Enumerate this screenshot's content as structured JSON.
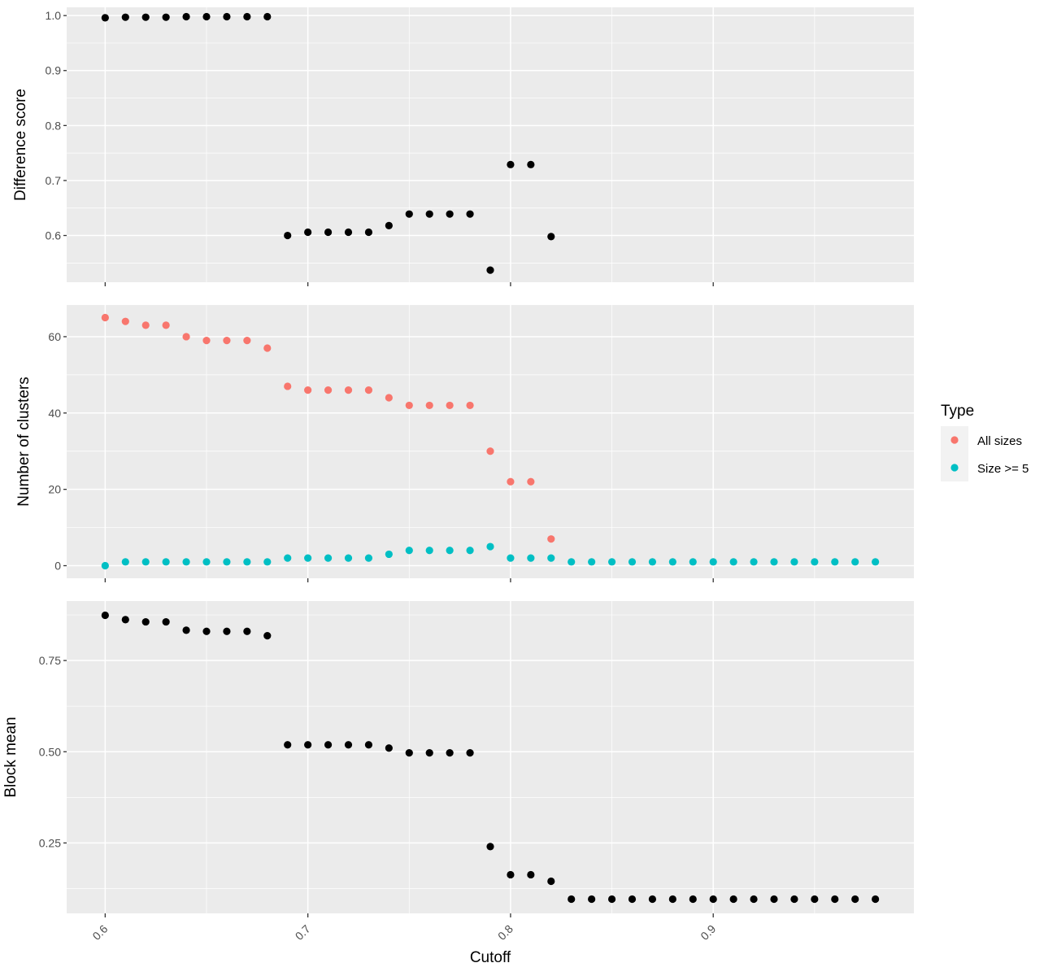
{
  "chart_data": {
    "type": "scatter",
    "xlabel": "Cutoff",
    "x_ticks": [
      0.6,
      0.7,
      0.8,
      0.9
    ],
    "x_tick_labels": [
      "0.6",
      "0.7",
      "0.8",
      "0.9"
    ],
    "xlim": [
      0.581,
      0.999
    ],
    "panels": [
      {
        "id": "difference",
        "ylabel": "Difference score",
        "ylim": [
          0.515,
          1.015
        ],
        "y_ticks": [
          0.6,
          0.7,
          0.8,
          0.9,
          1.0
        ],
        "y_tick_labels": [
          "0.6",
          "0.7",
          "0.8",
          "0.9",
          "1.0"
        ],
        "series": [
          {
            "color": "#000000",
            "x": [
              0.6,
              0.61,
              0.62,
              0.63,
              0.64,
              0.65,
              0.66,
              0.67,
              0.68,
              0.69,
              0.7,
              0.71,
              0.72,
              0.73,
              0.74,
              0.75,
              0.76,
              0.77,
              0.78,
              0.79,
              0.8,
              0.81,
              0.82
            ],
            "y": [
              0.996,
              0.997,
              0.997,
              0.997,
              0.998,
              0.998,
              0.998,
              0.998,
              0.998,
              0.6,
              0.606,
              0.606,
              0.606,
              0.606,
              0.618,
              0.639,
              0.639,
              0.639,
              0.639,
              0.537,
              0.729,
              0.729,
              0.598
            ]
          }
        ]
      },
      {
        "id": "clusters",
        "ylabel": "Number of clusters",
        "ylim": [
          -3.3,
          68.3
        ],
        "y_ticks": [
          0,
          20,
          40,
          60
        ],
        "y_tick_labels": [
          "0",
          "20",
          "40",
          "60"
        ],
        "series": [
          {
            "name": "All sizes",
            "color": "#F8766D",
            "x": [
              0.6,
              0.61,
              0.62,
              0.63,
              0.64,
              0.65,
              0.66,
              0.67,
              0.68,
              0.69,
              0.7,
              0.71,
              0.72,
              0.73,
              0.74,
              0.75,
              0.76,
              0.77,
              0.78,
              0.79,
              0.8,
              0.81,
              0.82
            ],
            "y": [
              65,
              64,
              63,
              63,
              60,
              59,
              59,
              59,
              57,
              47,
              46,
              46,
              46,
              46,
              44,
              42,
              42,
              42,
              42,
              30,
              22,
              22,
              7
            ]
          },
          {
            "name": "Size >= 5",
            "color": "#00BFC4",
            "x": [
              0.6,
              0.61,
              0.62,
              0.63,
              0.64,
              0.65,
              0.66,
              0.67,
              0.68,
              0.69,
              0.7,
              0.71,
              0.72,
              0.73,
              0.74,
              0.75,
              0.76,
              0.77,
              0.78,
              0.79,
              0.8,
              0.81,
              0.82,
              0.83,
              0.84,
              0.85,
              0.86,
              0.87,
              0.88,
              0.89,
              0.9,
              0.91,
              0.92,
              0.93,
              0.94,
              0.95,
              0.96,
              0.97,
              0.98
            ],
            "y": [
              0,
              1,
              1,
              1,
              1,
              1,
              1,
              1,
              1,
              2,
              2,
              2,
              2,
              2,
              3,
              4,
              4,
              4,
              4,
              5,
              2,
              2,
              2,
              1,
              1,
              1,
              1,
              1,
              1,
              1,
              1,
              1,
              1,
              1,
              1,
              1,
              1,
              1,
              1
            ]
          }
        ]
      },
      {
        "id": "block",
        "ylabel": "Block mean",
        "ylim": [
          0.057,
          0.913
        ],
        "y_ticks": [
          0.25,
          0.5,
          0.75
        ],
        "y_tick_labels": [
          "0.25",
          "0.50",
          "0.75"
        ],
        "series": [
          {
            "color": "#000000",
            "x": [
              0.6,
              0.61,
              0.62,
              0.63,
              0.64,
              0.65,
              0.66,
              0.67,
              0.68,
              0.69,
              0.7,
              0.71,
              0.72,
              0.73,
              0.74,
              0.75,
              0.76,
              0.77,
              0.78,
              0.79,
              0.8,
              0.81,
              0.82,
              0.83,
              0.84,
              0.85,
              0.86,
              0.87,
              0.88,
              0.89,
              0.9,
              0.91,
              0.92,
              0.93,
              0.94,
              0.95,
              0.96,
              0.97,
              0.98
            ],
            "y": [
              0.874,
              0.862,
              0.856,
              0.856,
              0.833,
              0.83,
              0.83,
              0.83,
              0.818,
              0.519,
              0.519,
              0.519,
              0.519,
              0.519,
              0.51,
              0.497,
              0.497,
              0.497,
              0.497,
              0.24,
              0.163,
              0.163,
              0.145,
              0.096,
              0.096,
              0.096,
              0.096,
              0.096,
              0.096,
              0.096,
              0.096,
              0.096,
              0.096,
              0.096,
              0.096,
              0.096,
              0.096,
              0.096,
              0.096
            ]
          }
        ]
      }
    ],
    "legend": {
      "title": "Type",
      "position": "right",
      "items": [
        {
          "label": "All sizes",
          "color": "#F8766D"
        },
        {
          "label": "Size >= 5",
          "color": "#00BFC4"
        }
      ]
    },
    "panel_background": "#EBEBEB",
    "grid": true
  }
}
